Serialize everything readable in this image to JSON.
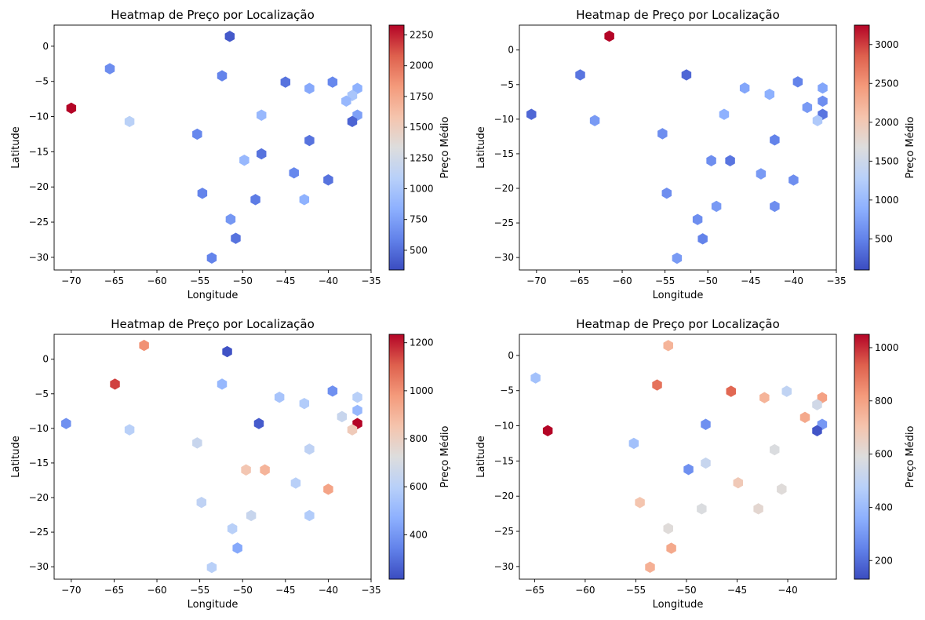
{
  "chart_data": [
    {
      "type": "heatmap",
      "title": "Heatmap de Preço por Localização",
      "xlabel": "Longitude",
      "ylabel": "Latitude",
      "colorbar_label": "Preço Médio",
      "colormap": "coolwarm",
      "xlim": [
        -72,
        -35
      ],
      "ylim": [
        -31.8,
        3
      ],
      "xticks": [
        -70,
        -65,
        -60,
        -55,
        -50,
        -45,
        -40,
        -35
      ],
      "yticks": [
        0,
        -5,
        -10,
        -15,
        -20,
        -25,
        -30
      ],
      "clim": [
        340,
        2330
      ],
      "cticks": [
        500,
        750,
        1000,
        1250,
        1500,
        1750,
        2000,
        2250
      ],
      "points": [
        {
          "x": -51.5,
          "y": 1.4,
          "v": 400
        },
        {
          "x": -65.5,
          "y": -3.2,
          "v": 650
        },
        {
          "x": -52.4,
          "y": -4.2,
          "v": 600
        },
        {
          "x": -45.0,
          "y": -5.1,
          "v": 520
        },
        {
          "x": -39.5,
          "y": -5.1,
          "v": 620
        },
        {
          "x": -42.2,
          "y": -6.0,
          "v": 800
        },
        {
          "x": -36.6,
          "y": -6.0,
          "v": 850
        },
        {
          "x": -37.2,
          "y": -7.0,
          "v": 1000
        },
        {
          "x": -37.9,
          "y": -7.8,
          "v": 900
        },
        {
          "x": -70.0,
          "y": -8.8,
          "v": 2330
        },
        {
          "x": -47.8,
          "y": -9.8,
          "v": 900
        },
        {
          "x": -36.6,
          "y": -9.8,
          "v": 750
        },
        {
          "x": -63.2,
          "y": -10.7,
          "v": 1100
        },
        {
          "x": -37.2,
          "y": -10.7,
          "v": 450
        },
        {
          "x": -42.2,
          "y": -13.4,
          "v": 520
        },
        {
          "x": -55.3,
          "y": -12.5,
          "v": 620
        },
        {
          "x": -47.8,
          "y": -15.3,
          "v": 520
        },
        {
          "x": -49.8,
          "y": -16.2,
          "v": 900
        },
        {
          "x": -44.0,
          "y": -18.0,
          "v": 620
        },
        {
          "x": -40.0,
          "y": -19.0,
          "v": 520
        },
        {
          "x": -54.7,
          "y": -20.9,
          "v": 600
        },
        {
          "x": -48.5,
          "y": -21.8,
          "v": 560
        },
        {
          "x": -42.8,
          "y": -21.8,
          "v": 850
        },
        {
          "x": -51.4,
          "y": -24.6,
          "v": 700
        },
        {
          "x": -50.8,
          "y": -27.3,
          "v": 520
        },
        {
          "x": -53.6,
          "y": -30.1,
          "v": 600
        }
      ]
    },
    {
      "type": "heatmap",
      "title": "Heatmap de Preço por Localização",
      "xlabel": "Longitude",
      "ylabel": "Latitude",
      "colorbar_label": "Preço Médio",
      "colormap": "coolwarm",
      "xlim": [
        -72,
        -35
      ],
      "ylim": [
        -31.8,
        3.6
      ],
      "xticks": [
        -70,
        -65,
        -60,
        -55,
        -50,
        -45,
        -40,
        -35
      ],
      "yticks": [
        0,
        -5,
        -10,
        -15,
        -20,
        -25,
        -30
      ],
      "clim": [
        100,
        3250
      ],
      "cticks": [
        500,
        1000,
        1500,
        2000,
        2500,
        3000
      ],
      "points": [
        {
          "x": -61.5,
          "y": 2.0,
          "v": 3250
        },
        {
          "x": -64.9,
          "y": -3.6,
          "v": 400
        },
        {
          "x": -52.5,
          "y": -3.6,
          "v": 300
        },
        {
          "x": -45.7,
          "y": -5.5,
          "v": 800
        },
        {
          "x": -42.8,
          "y": -6.4,
          "v": 900
        },
        {
          "x": -39.5,
          "y": -4.6,
          "v": 500
        },
        {
          "x": -36.6,
          "y": -5.5,
          "v": 800
        },
        {
          "x": -36.6,
          "y": -7.4,
          "v": 600
        },
        {
          "x": -38.4,
          "y": -8.3,
          "v": 700
        },
        {
          "x": -70.6,
          "y": -9.3,
          "v": 300
        },
        {
          "x": -63.2,
          "y": -10.2,
          "v": 700
        },
        {
          "x": -48.1,
          "y": -9.3,
          "v": 900
        },
        {
          "x": -36.6,
          "y": -9.3,
          "v": 400
        },
        {
          "x": -37.2,
          "y": -10.2,
          "v": 1200
        },
        {
          "x": -55.3,
          "y": -12.1,
          "v": 600
        },
        {
          "x": -42.2,
          "y": -13.0,
          "v": 500
        },
        {
          "x": -49.6,
          "y": -16.0,
          "v": 600
        },
        {
          "x": -47.4,
          "y": -16.0,
          "v": 400
        },
        {
          "x": -43.8,
          "y": -17.9,
          "v": 700
        },
        {
          "x": -40.0,
          "y": -18.8,
          "v": 600
        },
        {
          "x": -54.8,
          "y": -20.7,
          "v": 600
        },
        {
          "x": -49.0,
          "y": -22.6,
          "v": 700
        },
        {
          "x": -42.2,
          "y": -22.6,
          "v": 600
        },
        {
          "x": -51.2,
          "y": -24.5,
          "v": 600
        },
        {
          "x": -50.6,
          "y": -27.3,
          "v": 500
        },
        {
          "x": -53.6,
          "y": -30.1,
          "v": 700
        }
      ]
    },
    {
      "type": "heatmap",
      "title": "Heatmap de Preço por Localização",
      "xlabel": "Longitude",
      "ylabel": "Latitude",
      "colorbar_label": "Preço Médio",
      "colormap": "coolwarm",
      "xlim": [
        -72,
        -35
      ],
      "ylim": [
        -31.8,
        3.6
      ],
      "xticks": [
        -70,
        -65,
        -60,
        -55,
        -50,
        -45,
        -40,
        -35
      ],
      "yticks": [
        0,
        -5,
        -10,
        -15,
        -20,
        -25,
        -30
      ],
      "clim": [
        215,
        1235
      ],
      "cticks": [
        400,
        600,
        800,
        1000,
        1200
      ],
      "points": [
        {
          "x": -61.5,
          "y": 2.0,
          "v": 1000
        },
        {
          "x": -51.8,
          "y": 1.1,
          "v": 230
        },
        {
          "x": -64.9,
          "y": -3.6,
          "v": 1150
        },
        {
          "x": -52.4,
          "y": -3.6,
          "v": 500
        },
        {
          "x": -45.7,
          "y": -5.5,
          "v": 550
        },
        {
          "x": -42.8,
          "y": -6.4,
          "v": 580
        },
        {
          "x": -39.5,
          "y": -4.6,
          "v": 380
        },
        {
          "x": -36.6,
          "y": -5.5,
          "v": 600
        },
        {
          "x": -36.6,
          "y": -7.4,
          "v": 500
        },
        {
          "x": -38.4,
          "y": -8.3,
          "v": 650
        },
        {
          "x": -70.6,
          "y": -9.3,
          "v": 380
        },
        {
          "x": -63.2,
          "y": -10.2,
          "v": 600
        },
        {
          "x": -48.1,
          "y": -9.3,
          "v": 250
        },
        {
          "x": -36.6,
          "y": -9.3,
          "v": 1235
        },
        {
          "x": -37.2,
          "y": -10.2,
          "v": 820
        },
        {
          "x": -55.3,
          "y": -12.1,
          "v": 650
        },
        {
          "x": -42.2,
          "y": -13.0,
          "v": 620
        },
        {
          "x": -49.6,
          "y": -16.0,
          "v": 840
        },
        {
          "x": -47.4,
          "y": -16.0,
          "v": 900
        },
        {
          "x": -43.8,
          "y": -17.9,
          "v": 600
        },
        {
          "x": -40.0,
          "y": -18.8,
          "v": 950
        },
        {
          "x": -54.8,
          "y": -20.7,
          "v": 620
        },
        {
          "x": -49.0,
          "y": -22.6,
          "v": 650
        },
        {
          "x": -42.2,
          "y": -22.6,
          "v": 580
        },
        {
          "x": -51.2,
          "y": -24.5,
          "v": 600
        },
        {
          "x": -50.6,
          "y": -27.3,
          "v": 450
        },
        {
          "x": -53.6,
          "y": -30.1,
          "v": 600
        }
      ]
    },
    {
      "type": "heatmap",
      "title": "Heatmap de Preço por Localização",
      "xlabel": "Longitude",
      "ylabel": "Latitude",
      "colorbar_label": "Preço Médio",
      "colormap": "coolwarm",
      "xlim": [
        -66.5,
        -35.2
      ],
      "ylim": [
        -31.8,
        3
      ],
      "xticks": [
        -65,
        -60,
        -55,
        -50,
        -45,
        -40
      ],
      "yticks": [
        0,
        -5,
        -10,
        -15,
        -20,
        -25,
        -30
      ],
      "clim": [
        130,
        1050
      ],
      "cticks": [
        200,
        400,
        600,
        800,
        1000
      ],
      "points": [
        {
          "x": -51.8,
          "y": 1.4,
          "v": 750
        },
        {
          "x": -64.9,
          "y": -3.2,
          "v": 420
        },
        {
          "x": -52.9,
          "y": -4.2,
          "v": 900
        },
        {
          "x": -45.6,
          "y": -5.1,
          "v": 920
        },
        {
          "x": -42.3,
          "y": -6.0,
          "v": 750
        },
        {
          "x": -40.1,
          "y": -5.1,
          "v": 500
        },
        {
          "x": -36.6,
          "y": -6.0,
          "v": 800
        },
        {
          "x": -37.1,
          "y": -7.0,
          "v": 550
        },
        {
          "x": -38.3,
          "y": -8.8,
          "v": 780
        },
        {
          "x": -63.7,
          "y": -10.7,
          "v": 1050
        },
        {
          "x": -48.1,
          "y": -9.8,
          "v": 280
        },
        {
          "x": -36.6,
          "y": -9.8,
          "v": 300
        },
        {
          "x": -37.1,
          "y": -10.7,
          "v": 150
        },
        {
          "x": -55.2,
          "y": -12.5,
          "v": 420
        },
        {
          "x": -41.3,
          "y": -13.4,
          "v": 580
        },
        {
          "x": -48.1,
          "y": -15.3,
          "v": 520
        },
        {
          "x": -49.8,
          "y": -16.2,
          "v": 280
        },
        {
          "x": -44.9,
          "y": -18.1,
          "v": 680
        },
        {
          "x": -40.6,
          "y": -19.0,
          "v": 600
        },
        {
          "x": -54.6,
          "y": -20.9,
          "v": 700
        },
        {
          "x": -48.5,
          "y": -21.8,
          "v": 580
        },
        {
          "x": -42.9,
          "y": -21.8,
          "v": 620
        },
        {
          "x": -51.8,
          "y": -24.6,
          "v": 600
        },
        {
          "x": -51.5,
          "y": -27.4,
          "v": 780
        },
        {
          "x": -53.6,
          "y": -30.1,
          "v": 760
        }
      ]
    }
  ]
}
